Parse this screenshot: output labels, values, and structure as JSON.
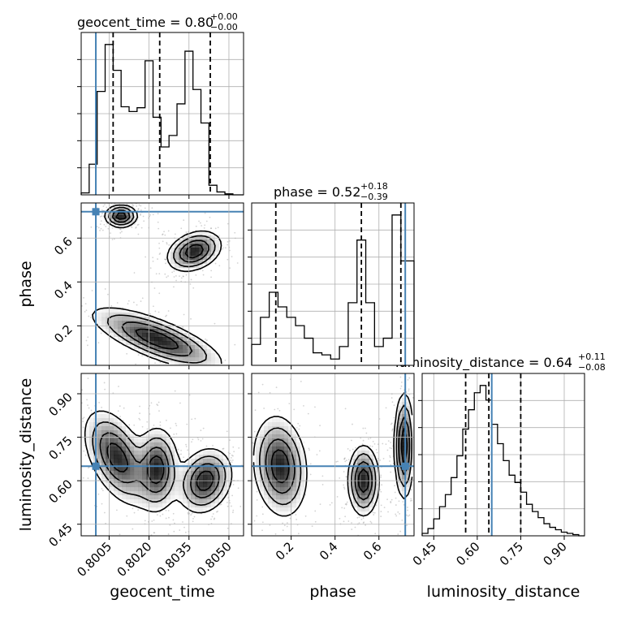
{
  "chart_data": {
    "type": "corner",
    "parameters": [
      "geocent_time",
      "phase",
      "luminosity_distance"
    ],
    "truths": {
      "geocent_time": 0.8,
      "phase": 0.72,
      "luminosity_distance": 0.65
    },
    "colors": {
      "truth": "#4682b4",
      "hist": "#000000",
      "grid": "#b0b0b0",
      "samples": "#808080"
    },
    "grid": true,
    "titles": [
      {
        "param": "geocent_time",
        "label": "geocent_time",
        "median": "0.80",
        "plus": "+0.00",
        "minus": "−0.00"
      },
      {
        "param": "phase",
        "label": "phase",
        "median": "0.52",
        "plus": "+0.18",
        "minus": "−0.39"
      },
      {
        "param": "luminosity_distance",
        "label": "luminosity_distance",
        "median": "0.64",
        "plus": "+0.11",
        "minus": "−0.08"
      }
    ],
    "axes": {
      "geocent_time": {
        "label": "geocent_time",
        "range": [
          0.79945,
          0.80555
        ],
        "ticks": [
          0.8005,
          0.802,
          0.8035,
          0.805
        ],
        "ticklabels": [
          "0.8005",
          "0.8020",
          "0.8035",
          "0.8050"
        ]
      },
      "phase": {
        "label": "phase",
        "range": [
          0.02,
          0.76
        ],
        "ticks": [
          0.2,
          0.4,
          0.6
        ],
        "ticklabels": [
          "0.2",
          "0.4",
          "0.6"
        ],
        "yticks": [
          0.2,
          0.4,
          0.6
        ],
        "yticklabels": [
          "0.2",
          "0.4",
          "0.6"
        ]
      },
      "luminosity_distance": {
        "label": "luminosity_distance",
        "range": [
          0.41,
          0.97
        ],
        "ticks": [
          0.45,
          0.6,
          0.75,
          0.9
        ],
        "ticklabels": [
          "0.45",
          "0.60",
          "0.75",
          "0.90"
        ]
      }
    },
    "histograms": {
      "geocent_time": {
        "bin_edges": [
          0.79945,
          0.79975,
          0.80005,
          0.80035,
          0.80065,
          0.80095,
          0.80125,
          0.80155,
          0.80185,
          0.80215,
          0.80245,
          0.80275,
          0.80305,
          0.80335,
          0.80365,
          0.80395,
          0.80425,
          0.80455,
          0.80485,
          0.80515,
          0.80555
        ],
        "counts": [
          0.2,
          3.2,
          10.8,
          15.7,
          13.0,
          9.2,
          8.7,
          9.1,
          14.0,
          8.1,
          5.0,
          6.2,
          9.5,
          15.0,
          11.0,
          7.5,
          1.0,
          0.3,
          0.1,
          0.0
        ],
        "quantiles": [
          0.80065,
          0.8024,
          0.8043
        ]
      },
      "phase": {
        "bin_edges": [
          0.02,
          0.06,
          0.1,
          0.14,
          0.18,
          0.22,
          0.26,
          0.3,
          0.34,
          0.38,
          0.42,
          0.46,
          0.5,
          0.54,
          0.58,
          0.62,
          0.66,
          0.7,
          0.76
        ],
        "counts": [
          1.0,
          2.3,
          3.5,
          2.8,
          2.3,
          1.9,
          1.3,
          0.6,
          0.5,
          0.3,
          0.9,
          3.0,
          6.0,
          3.0,
          0.9,
          1.3,
          7.2,
          5.0
        ],
        "quantiles": [
          0.13,
          0.52,
          0.7
        ]
      },
      "luminosity_distance": {
        "bin_edges": [
          0.41,
          0.43,
          0.45,
          0.47,
          0.49,
          0.51,
          0.53,
          0.55,
          0.57,
          0.59,
          0.61,
          0.63,
          0.65,
          0.67,
          0.69,
          0.71,
          0.73,
          0.75,
          0.77,
          0.79,
          0.81,
          0.83,
          0.85,
          0.87,
          0.89,
          0.91,
          0.93,
          0.95,
          0.97
        ],
        "counts": [
          0.1,
          0.3,
          0.7,
          1.2,
          1.7,
          2.4,
          3.3,
          4.4,
          5.2,
          5.9,
          6.2,
          5.6,
          4.6,
          3.8,
          3.1,
          2.5,
          2.2,
          1.8,
          1.3,
          1.0,
          0.75,
          0.5,
          0.35,
          0.25,
          0.15,
          0.1,
          0.05,
          0.0
        ],
        "quantiles": [
          0.56,
          0.64,
          0.75
        ]
      }
    },
    "joint_modes": {
      "phase_vs_geocent_time": [
        {
          "x": 0.80095,
          "y": 0.7,
          "sx": 0.0003,
          "sy": 0.025,
          "rho": 0.0
        },
        {
          "x": 0.8037,
          "y": 0.54,
          "sx": 0.0005,
          "sy": 0.045,
          "rho": 0.3
        },
        {
          "x": 0.8023,
          "y": 0.14,
          "sx": 0.0012,
          "sy": 0.07,
          "rho": -0.75
        }
      ],
      "luminosity_distance_vs_geocent_time": [
        {
          "x": 0.8008,
          "y": 0.68,
          "sx": 0.0006,
          "sy": 0.08,
          "rho": -0.5
        },
        {
          "x": 0.8023,
          "y": 0.64,
          "sx": 0.0004,
          "sy": 0.07,
          "rho": 0.0
        },
        {
          "x": 0.8041,
          "y": 0.6,
          "sx": 0.0005,
          "sy": 0.055,
          "rho": 0.2
        }
      ],
      "luminosity_distance_vs_phase": [
        {
          "x": 0.15,
          "y": 0.65,
          "sx": 0.06,
          "sy": 0.085,
          "rho": -0.15
        },
        {
          "x": 0.53,
          "y": 0.6,
          "sx": 0.035,
          "sy": 0.06,
          "rho": 0.0
        },
        {
          "x": 0.715,
          "y": 0.72,
          "sx": 0.022,
          "sy": 0.09,
          "rho": 0.0
        }
      ]
    }
  }
}
